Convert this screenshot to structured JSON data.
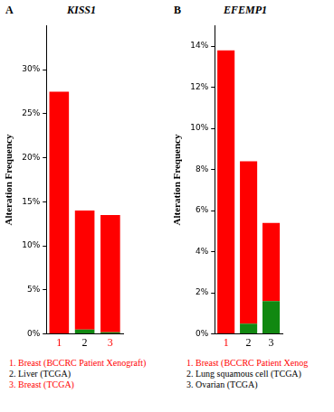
{
  "chart_data": [
    {
      "type": "bar",
      "panel_label": "A",
      "title": "KISS1",
      "y_label": "Alteration Frequency",
      "categories": [
        "1",
        "2",
        "3"
      ],
      "series": [
        {
          "color": "#118811",
          "values": [
            0,
            0.5,
            0.2
          ]
        },
        {
          "color": "#ff0000",
          "values": [
            27.5,
            13.5,
            13.3
          ]
        }
      ],
      "stacked": true,
      "grid": false,
      "ylim": [
        0,
        35
      ],
      "yticks": [
        {
          "value": 0,
          "label": "0%"
        },
        {
          "value": 5,
          "label": "5%"
        },
        {
          "value": 10,
          "label": "10%"
        },
        {
          "value": 15,
          "label": "15%"
        },
        {
          "value": 20,
          "label": "20%"
        },
        {
          "value": 25,
          "label": "25%"
        },
        {
          "value": 30,
          "label": "30%"
        }
      ],
      "annotations": [
        {
          "text": "1. Breast (BCCRC Patient Xenograft)",
          "color": "#ff0000"
        },
        {
          "text": "2. Liver (TCGA)",
          "color": "#000000"
        },
        {
          "text": "3. Breast (TCGA)",
          "color": "#ff0000"
        }
      ]
    },
    {
      "type": "bar",
      "panel_label": "B",
      "title": "EFEMP1",
      "y_label": "Alteration Frequency",
      "categories": [
        "1",
        "2",
        "3"
      ],
      "series": [
        {
          "color": "#118811",
          "values": [
            0,
            0.5,
            1.6
          ]
        },
        {
          "color": "#ff0000",
          "values": [
            13.8,
            7.9,
            3.8
          ]
        }
      ],
      "stacked": true,
      "grid": false,
      "ylim": [
        0,
        15
      ],
      "yticks": [
        {
          "value": 0,
          "label": "0%"
        },
        {
          "value": 2,
          "label": "2%"
        },
        {
          "value": 4,
          "label": "4%"
        },
        {
          "value": 6,
          "label": "6%"
        },
        {
          "value": 8,
          "label": "8%"
        },
        {
          "value": 10,
          "label": "10%"
        },
        {
          "value": 12,
          "label": "12%"
        },
        {
          "value": 14,
          "label": "14%"
        }
      ],
      "annotations": [
        {
          "text": "1. Breast (BCCRC Patient Xenog",
          "color": "#ff0000"
        },
        {
          "text": "2. Lung squamous cell (TCGA)",
          "color": "#000000"
        },
        {
          "text": "3. Ovarian (TCGA)",
          "color": "#000000"
        }
      ]
    }
  ]
}
